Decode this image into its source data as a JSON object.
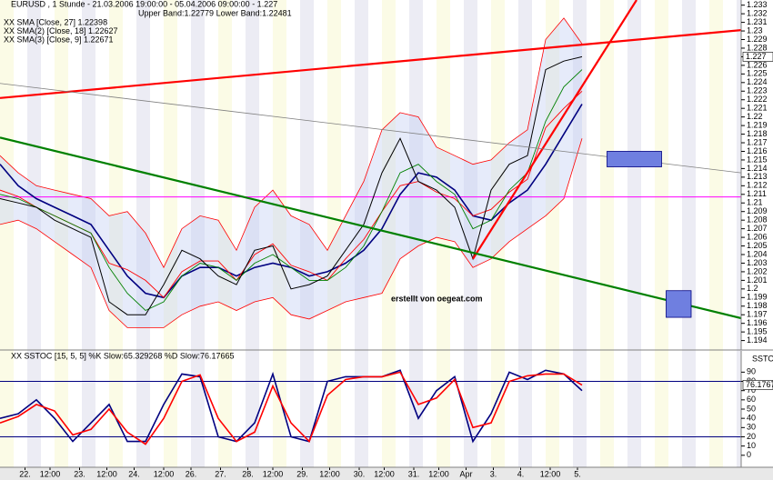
{
  "chart_data": [
    {
      "type": "line",
      "title": "EURUSD , 1 Stunde - 21.03.2006 19:00:00 - 05.04.2006 09:00:00 - 1.227",
      "annotation": "erstellt von oegeat.com",
      "last_value": 1.227,
      "xlim": [
        0,
        326
      ],
      "ylim": [
        1.1929,
        1.2336
      ],
      "yticks": [
        1.194,
        1.195,
        1.196,
        1.197,
        1.198,
        1.199,
        1.2,
        1.201,
        1.202,
        1.203,
        1.204,
        1.205,
        1.206,
        1.207,
        1.208,
        1.209,
        1.21,
        1.211,
        1.212,
        1.213,
        1.214,
        1.215,
        1.216,
        1.217,
        1.218,
        1.219,
        1.22,
        1.221,
        1.222,
        1.223,
        1.224,
        1.225,
        1.226,
        1.227,
        1.228,
        1.229,
        1.23,
        1.231,
        1.232,
        1.233
      ],
      "x": [
        0,
        8,
        16,
        24,
        32,
        40,
        48,
        56,
        64,
        72,
        80,
        88,
        96,
        104,
        112,
        120,
        128,
        136,
        144,
        152,
        160,
        168,
        176,
        184,
        192,
        200,
        208,
        216,
        224,
        232,
        240,
        248,
        256
      ],
      "values": [
        1.2105,
        1.21,
        1.2095,
        1.208,
        1.207,
        1.206,
        1.1985,
        1.197,
        1.197,
        1.2005,
        1.2045,
        1.2035,
        1.2015,
        1.2005,
        1.2045,
        1.205,
        1.2,
        1.2005,
        1.2015,
        1.2045,
        1.2075,
        1.2135,
        1.2175,
        1.2125,
        1.2115,
        1.2095,
        1.2035,
        1.2115,
        1.2145,
        1.2155,
        1.2255,
        1.2265,
        1.227
      ],
      "color": "#000000",
      "series": [
        {
          "name": "XX SMA [Close, 27] 1.22398",
          "color": "#000080",
          "values": [
            1.2145,
            1.212,
            1.2105,
            1.2095,
            1.2085,
            1.2075,
            1.2045,
            1.2015,
            1.1995,
            1.199,
            1.2015,
            1.2025,
            1.2025,
            1.2015,
            1.2025,
            1.203,
            1.2025,
            1.2015,
            1.202,
            1.203,
            1.2045,
            1.207,
            1.211,
            1.2135,
            1.213,
            1.2115,
            1.2085,
            1.208,
            1.21,
            1.2115,
            1.2145,
            1.218,
            1.2215
          ]
        },
        {
          "name": "XX SMA(2) [Close, 18] 1.22627",
          "color": "#ff0000",
          "values": [
            1.2115,
            1.21075,
            1.2095,
            1.2085,
            1.2075,
            1.2065,
            1.203,
            1.20225,
            1.201,
            1.199,
            1.202,
            1.20325,
            1.20325,
            1.201,
            1.204,
            1.20525,
            1.20275,
            1.202,
            1.201,
            1.2035,
            1.20575,
            1.209,
            1.212,
            1.2125,
            1.21125,
            1.2105,
            1.2085,
            1.20925,
            1.21125,
            1.21275,
            1.21875,
            1.221,
            1.223
          ]
        },
        {
          "name": "XX SMA(3) [Close, 9] 1.22671",
          "color": "#008000",
          "values": [
            1.211,
            1.2105,
            1.2095,
            1.2085,
            1.2075,
            1.2065,
            1.2025,
            1.1995,
            1.1975,
            1.1985,
            1.2015,
            1.203,
            1.2025,
            1.201,
            1.203,
            1.204,
            1.2025,
            1.201,
            1.201,
            1.2025,
            1.205,
            1.209,
            1.2135,
            1.2145,
            1.2125,
            1.211,
            1.207,
            1.208,
            1.2115,
            1.2135,
            1.2195,
            1.2235,
            1.2255
          ]
        }
      ],
      "bands": {
        "label": "Upper Band:1.22779 Lower Band:1.22481",
        "color": "#ff0000",
        "upper": [
          1.2155,
          1.2135,
          1.212,
          1.2115,
          1.211,
          1.2105,
          1.2085,
          1.209,
          1.2065,
          1.2025,
          1.207,
          1.2085,
          1.208,
          1.2045,
          1.2095,
          1.2115,
          1.2085,
          1.2075,
          1.2045,
          1.2085,
          1.2125,
          1.2185,
          1.2205,
          1.22,
          1.2165,
          1.2155,
          1.2145,
          1.215,
          1.217,
          1.2185,
          1.229,
          1.2315,
          1.2285
        ],
        "lower": [
          1.2075,
          1.208,
          1.207,
          1.2055,
          1.204,
          1.2025,
          1.1975,
          1.1955,
          1.1955,
          1.1955,
          1.197,
          1.198,
          1.1985,
          1.1975,
          1.1985,
          1.199,
          1.197,
          1.1965,
          1.1975,
          1.1985,
          1.199,
          1.1995,
          1.2035,
          1.205,
          1.206,
          1.2055,
          1.2025,
          1.2035,
          1.2055,
          1.207,
          1.2085,
          1.2105,
          1.2175
        ]
      },
      "lines": [
        {
          "color": "#ff0000",
          "x": [
            0,
            326
          ],
          "y": [
            1.2222,
            1.2301
          ]
        },
        {
          "color": "#ff0000",
          "x": [
            208,
            280
          ],
          "y": [
            1.2035,
            1.2336
          ]
        },
        {
          "color": "#008000",
          "x": [
            0,
            326
          ],
          "y": [
            1.2176,
            1.1966
          ]
        },
        {
          "color": "#808080",
          "x": [
            0,
            326
          ],
          "y": [
            1.2239,
            1.2135
          ]
        }
      ],
      "hlines": [
        {
          "value": 1.2107,
          "color": "#ff00ff"
        }
      ],
      "rects": [
        {
          "color": "#6f7fe0",
          "x": [
            267,
            291
          ],
          "y": [
            1.216,
            1.2142
          ]
        },
        {
          "color": "#6f7fe0",
          "x": [
            293,
            304
          ],
          "y": [
            1.1998,
            1.1967
          ]
        }
      ]
    },
    {
      "type": "line",
      "title": "XX SSTOC [15, 5, 5] %K Slow:65.329268 %D Slow:76.17665",
      "axis_label": "SSTO",
      "last_value": 76.1767,
      "xlim": [
        0,
        326
      ],
      "ylim": [
        -13,
        113
      ],
      "yticks": [
        0,
        10,
        20,
        30,
        40,
        50,
        60,
        70,
        80,
        90
      ],
      "levels": [
        80,
        20
      ],
      "level_color": "#000080",
      "x": [
        0,
        8,
        16,
        24,
        32,
        40,
        48,
        56,
        64,
        72,
        80,
        88,
        96,
        104,
        112,
        120,
        128,
        136,
        144,
        152,
        160,
        168,
        176,
        184,
        192,
        200,
        208,
        216,
        224,
        232,
        240,
        248,
        256
      ],
      "series": [
        {
          "color": "#000080",
          "values": [
            40,
            45,
            60,
            40,
            15,
            35,
            55,
            15,
            15,
            55,
            88,
            85,
            20,
            15,
            35,
            88,
            20,
            15,
            80,
            85,
            85,
            85,
            92,
            40,
            70,
            85,
            15,
            45,
            90,
            82,
            92,
            88,
            70
          ]
        },
        {
          "color": "#ff0000",
          "values": [
            35,
            42,
            55,
            48,
            22,
            28,
            50,
            25,
            12,
            40,
            80,
            87,
            40,
            15,
            25,
            75,
            35,
            15,
            65,
            82,
            85,
            85,
            90,
            55,
            62,
            82,
            30,
            35,
            80,
            86,
            88,
            88,
            76
          ]
        }
      ],
      "xticks": [
        {
          "value": 11,
          "label": "22."
        },
        {
          "value": 22,
          "label": "12:00"
        },
        {
          "value": 35,
          "label": "23."
        },
        {
          "value": 47,
          "label": "12:00"
        },
        {
          "value": 59,
          "label": "24."
        },
        {
          "value": 72,
          "label": "12:00"
        },
        {
          "value": 84,
          "label": "26."
        },
        {
          "value": 97,
          "label": "27."
        },
        {
          "value": 109,
          "label": "28."
        },
        {
          "value": 120,
          "label": "12:00"
        },
        {
          "value": 133,
          "label": "29."
        },
        {
          "value": 145,
          "label": "12:00"
        },
        {
          "value": 158,
          "label": "30."
        },
        {
          "value": 169,
          "label": "12:00"
        },
        {
          "value": 182,
          "label": "31."
        },
        {
          "value": 193,
          "label": "12:00"
        },
        {
          "value": 205,
          "label": "Apr"
        },
        {
          "value": 217,
          "label": "3."
        },
        {
          "value": 229,
          "label": "4."
        },
        {
          "value": 242,
          "label": "12:00"
        },
        {
          "value": 254,
          "label": "5."
        }
      ]
    }
  ]
}
